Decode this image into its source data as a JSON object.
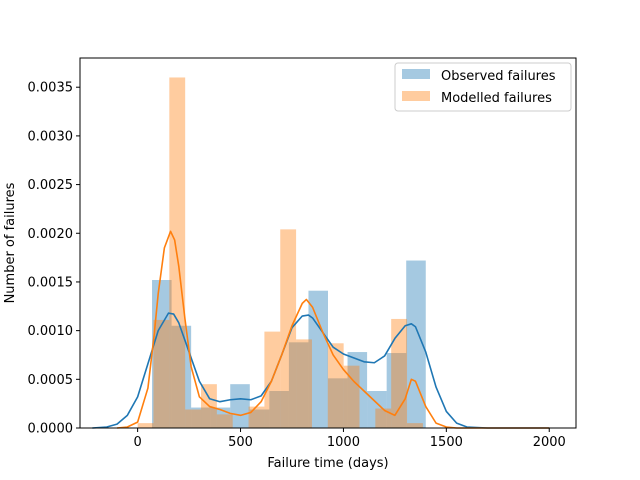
{
  "chart_data": {
    "type": "bar",
    "xlabel": "Failure time (days)",
    "ylabel": "Number of failures",
    "xlim": [
      -280,
      2130
    ],
    "ylim": [
      0,
      0.0038
    ],
    "xticks": [
      0,
      500,
      1000,
      1500,
      2000
    ],
    "xtick_labels": [
      "0",
      "500",
      "1000",
      "1500",
      "2000"
    ],
    "yticks": [
      0,
      0.0005,
      0.001,
      0.0015,
      0.002,
      0.0025,
      0.003,
      0.0035
    ],
    "ytick_labels": [
      "0.0000",
      "0.0005",
      "0.0010",
      "0.0015",
      "0.0020",
      "0.0025",
      "0.0030",
      "0.0035"
    ],
    "legend_position": "top-right",
    "colors": {
      "observed": "#1f77b4",
      "modelled": "#ff7f0e"
    },
    "series": [
      {
        "name": "Observed failures",
        "key": "observed",
        "hist": {
          "edges": [
            70,
            165,
            260,
            355,
            450,
            545,
            640,
            735,
            830,
            925,
            1020,
            1115,
            1210,
            1305,
            1400
          ],
          "values": [
            0.00152,
            0.00105,
            0.00021,
            0.00021,
            0.00045,
            0.00019,
            0.00038,
            0.00088,
            0.00141,
            0.00051,
            0.00078,
            0.00038,
            0.00077,
            0.00172
          ]
        },
        "kde": {
          "x": [
            -220,
            -150,
            -100,
            -50,
            0,
            50,
            100,
            150,
            175,
            200,
            250,
            300,
            350,
            400,
            450,
            500,
            550,
            600,
            650,
            700,
            750,
            800,
            830,
            850,
            900,
            950,
            1000,
            1050,
            1100,
            1150,
            1200,
            1250,
            1300,
            1330,
            1350,
            1400,
            1450,
            1500,
            1550,
            1600,
            1700,
            1800,
            1900,
            2000
          ],
          "y": [
            0.0,
            1e-05,
            4e-05,
            0.00013,
            0.00032,
            0.00066,
            0.001,
            0.00118,
            0.00117,
            0.00108,
            0.00078,
            0.00048,
            0.0003,
            0.00027,
            0.00029,
            0.0003,
            0.00029,
            0.00033,
            0.00048,
            0.00075,
            0.00103,
            0.00115,
            0.00116,
            0.00113,
            0.00098,
            0.00083,
            0.00076,
            0.00072,
            0.00068,
            0.00067,
            0.00074,
            0.00092,
            0.00105,
            0.00107,
            0.00104,
            0.00078,
            0.00042,
            0.00017,
            5e-05,
            1e-05,
            0.0,
            0.0,
            0.0,
            0.0
          ]
        }
      },
      {
        "name": "Modelled failures",
        "key": "modelled",
        "hist": {
          "edges": [
            0,
            77,
            154,
            231,
            308,
            385,
            462,
            539,
            616,
            693,
            770,
            847,
            924,
            1001,
            1078,
            1155,
            1232,
            1309,
            1386,
            1463
          ],
          "values": [
            5e-05,
            0.00111,
            0.0036,
            0.00019,
            0.00045,
            0.00014,
            0.0,
            0.00022,
            0.00099,
            0.00204,
            0.00091,
            0.0,
            0.00087,
            0.00064,
            0.0,
            0.0002,
            0.00112,
            5e-05,
            0.0
          ]
        },
        "kde": {
          "x": [
            -100,
            -50,
            0,
            50,
            80,
            100,
            130,
            160,
            180,
            200,
            230,
            260,
            300,
            350,
            400,
            450,
            500,
            550,
            600,
            650,
            700,
            750,
            800,
            820,
            850,
            900,
            950,
            1000,
            1050,
            1100,
            1150,
            1200,
            1250,
            1300,
            1330,
            1350,
            1400,
            1450,
            1500,
            1550,
            1600,
            1700,
            1800,
            1900,
            2000
          ],
          "y": [
            0.0,
            1e-05,
            6e-05,
            0.00041,
            0.00095,
            0.00138,
            0.00185,
            0.00202,
            0.00193,
            0.00166,
            0.00112,
            0.00063,
            0.00032,
            0.00022,
            0.00019,
            0.00015,
            0.00013,
            0.00016,
            0.00027,
            0.00048,
            0.00075,
            0.00105,
            0.00128,
            0.00132,
            0.00124,
            0.00098,
            0.00075,
            0.0006,
            0.00048,
            0.00038,
            0.00028,
            0.00018,
            0.00013,
            0.0003,
            0.0005,
            0.00048,
            0.00022,
            5e-05,
            1e-05,
            0.0,
            0.0,
            0.0,
            0.0,
            0.0,
            0.0
          ]
        }
      }
    ]
  }
}
